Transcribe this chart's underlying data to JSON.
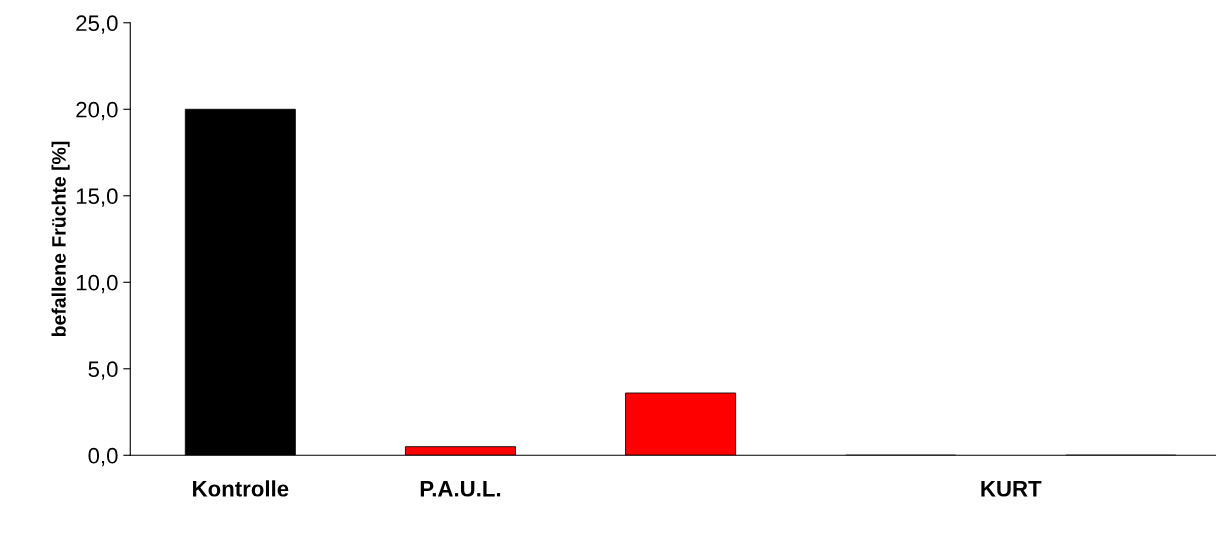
{
  "chart_data": {
    "type": "bar",
    "ylabel": "befallene Früchte [%]",
    "categories": [
      "Kontrolle",
      null,
      "P.A.U.L.",
      null,
      null,
      null,
      null,
      "KURT",
      null
    ],
    "values": [
      20.0,
      null,
      0.5,
      null,
      3.6,
      null,
      0,
      null,
      0
    ],
    "colors": [
      "#000000",
      "#000000",
      "#ff0000",
      "#ff0000",
      "#ff0000",
      "#ff0000",
      "#ff0000",
      "#ff0000",
      "#ff0000"
    ],
    "ylim": [
      0,
      25
    ],
    "yticks": [
      {
        "value": 0,
        "label": "0,0"
      },
      {
        "value": 5,
        "label": "5,0"
      },
      {
        "value": 10,
        "label": "10,0"
      },
      {
        "value": 15,
        "label": "15,0"
      },
      {
        "value": 20,
        "label": "20,0"
      },
      {
        "value": 25,
        "label": "25,0"
      }
    ],
    "grid": false,
    "legend": false
  }
}
